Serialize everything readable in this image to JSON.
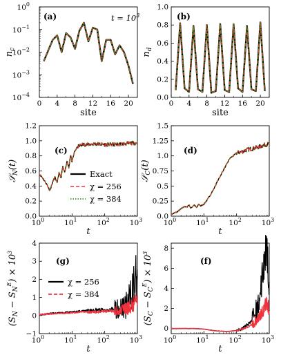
{
  "colors": {
    "exact": "#000000",
    "chi256": "#f0333f",
    "chi384": "#3c9a12",
    "chi256_err": "#000000",
    "chi384_err": "#f0333f"
  },
  "chart_data": [
    {
      "id": "a",
      "type": "line",
      "panel_label": "(a)",
      "annotation": "t = 10^3",
      "annotation_parts": {
        "base": "t = 10",
        "exp": "3"
      },
      "xlabel": "site",
      "ylabel": "n_c",
      "yscale": "log",
      "xlim": [
        0,
        22
      ],
      "ylim": [
        0.0001,
        1
      ],
      "xticks": [
        0,
        4,
        8,
        12,
        16,
        20
      ],
      "yticks": [
        "10^0",
        "10^-1",
        "10^-2",
        "10^-3",
        "10^-4"
      ],
      "x": [
        1,
        2,
        3,
        4,
        5,
        6,
        7,
        8,
        9,
        10,
        11,
        12,
        13,
        14,
        15,
        16,
        17,
        18,
        19,
        20,
        21
      ],
      "series": [
        {
          "name": "Exact",
          "values": [
            0.004,
            0.012,
            0.035,
            0.055,
            0.01,
            0.07,
            0.045,
            0.014,
            0.09,
            0.2,
            0.03,
            0.12,
            0.1,
            0.004,
            0.035,
            0.035,
            0.008,
            0.02,
            0.01,
            0.0025,
            0.0004
          ]
        },
        {
          "name": "χ = 256",
          "values": [
            0.004,
            0.012,
            0.035,
            0.055,
            0.01,
            0.07,
            0.045,
            0.014,
            0.09,
            0.2,
            0.03,
            0.12,
            0.1,
            0.004,
            0.035,
            0.035,
            0.008,
            0.02,
            0.01,
            0.0025,
            0.0004
          ]
        },
        {
          "name": "χ = 384",
          "values": [
            0.004,
            0.012,
            0.035,
            0.055,
            0.01,
            0.07,
            0.045,
            0.014,
            0.09,
            0.2,
            0.03,
            0.12,
            0.1,
            0.004,
            0.035,
            0.035,
            0.008,
            0.02,
            0.01,
            0.0025,
            0.0004
          ]
        }
      ]
    },
    {
      "id": "b",
      "type": "line",
      "panel_label": "(b)",
      "xlabel": "site",
      "ylabel": "n_d",
      "xlim": [
        0,
        22
      ],
      "ylim": [
        0,
        1.0
      ],
      "xticks": [
        0,
        4,
        8,
        12,
        16,
        20
      ],
      "yticks": [
        0.0,
        0.2,
        0.4,
        0.6,
        0.8,
        1.0
      ],
      "x": [
        1,
        2,
        3,
        4,
        5,
        6,
        7,
        8,
        9,
        10,
        11,
        12,
        13,
        14,
        15,
        16,
        17,
        18,
        19,
        20,
        21
      ],
      "series": [
        {
          "name": "Exact",
          "values": [
            0.08,
            0.82,
            0.1,
            0.06,
            0.79,
            0.09,
            0.06,
            0.8,
            0.05,
            0.07,
            0.81,
            0.08,
            0.06,
            0.81,
            0.1,
            0.06,
            0.79,
            0.09,
            0.07,
            0.83,
            0.07
          ]
        },
        {
          "name": "χ = 256",
          "values": [
            0.08,
            0.82,
            0.1,
            0.06,
            0.79,
            0.09,
            0.06,
            0.8,
            0.05,
            0.07,
            0.81,
            0.08,
            0.06,
            0.81,
            0.1,
            0.06,
            0.79,
            0.09,
            0.07,
            0.83,
            0.07
          ]
        },
        {
          "name": "χ = 384",
          "values": [
            0.08,
            0.82,
            0.1,
            0.06,
            0.79,
            0.09,
            0.06,
            0.8,
            0.05,
            0.07,
            0.81,
            0.08,
            0.06,
            0.81,
            0.1,
            0.06,
            0.79,
            0.09,
            0.07,
            0.83,
            0.07
          ]
        }
      ]
    },
    {
      "id": "c",
      "type": "line",
      "panel_label": "(c)",
      "xlabel": "t",
      "ylabel": "S_N(t)",
      "xscale": "log",
      "xlim": [
        1,
        1000
      ],
      "ylim": [
        0,
        1.2
      ],
      "yticks": [
        0.0,
        0.2,
        0.4,
        0.6,
        0.8,
        1.0,
        1.2
      ],
      "legend": {
        "placement": "center",
        "entries": [
          "Exact",
          "χ = 256",
          "χ = 384"
        ]
      },
      "x": [
        1,
        1.3,
        1.7,
        2.1,
        2.6,
        3,
        3.5,
        4,
        4.6,
        5.2,
        6,
        7,
        8,
        9,
        10,
        12,
        15,
        20,
        30,
        50,
        100,
        200,
        400,
        700,
        1000
      ],
      "series": [
        {
          "name": "Exact",
          "values": [
            0.56,
            0.5,
            0.42,
            0.34,
            0.46,
            0.52,
            0.44,
            0.58,
            0.5,
            0.66,
            0.57,
            0.74,
            0.64,
            0.82,
            0.72,
            0.86,
            0.92,
            0.95,
            0.95,
            0.96,
            0.95,
            0.95,
            0.96,
            0.97,
            0.97
          ]
        },
        {
          "name": "χ = 256",
          "values": [
            0.56,
            0.5,
            0.42,
            0.34,
            0.46,
            0.52,
            0.44,
            0.58,
            0.5,
            0.66,
            0.57,
            0.74,
            0.64,
            0.82,
            0.72,
            0.86,
            0.92,
            0.95,
            0.95,
            0.96,
            0.95,
            0.95,
            0.96,
            0.97,
            0.97
          ]
        },
        {
          "name": "χ = 384",
          "values": [
            0.56,
            0.5,
            0.42,
            0.34,
            0.46,
            0.52,
            0.44,
            0.58,
            0.5,
            0.66,
            0.57,
            0.74,
            0.64,
            0.82,
            0.72,
            0.86,
            0.92,
            0.95,
            0.95,
            0.96,
            0.95,
            0.95,
            0.96,
            0.97,
            0.97
          ]
        }
      ]
    },
    {
      "id": "d",
      "type": "line",
      "panel_label": "(d)",
      "xlabel": "t",
      "ylabel": "S_C(t)",
      "xscale": "log",
      "xlim": [
        1,
        1000
      ],
      "ylim": [
        0,
        1.5
      ],
      "yticks": [
        0.0,
        0.25,
        0.5,
        0.75,
        1.0,
        1.25,
        1.5
      ],
      "x": [
        1,
        1.5,
        2,
        2.5,
        3,
        3.5,
        4,
        5,
        6,
        7,
        8,
        10,
        13,
        16,
        20,
        25,
        30,
        40,
        50,
        60,
        70,
        80,
        100,
        150,
        200,
        300,
        500,
        700,
        1000
      ],
      "series": [
        {
          "name": "Exact",
          "values": [
            0.03,
            0.07,
            0.12,
            0.16,
            0.15,
            0.19,
            0.13,
            0.19,
            0.14,
            0.2,
            0.17,
            0.2,
            0.28,
            0.36,
            0.45,
            0.56,
            0.64,
            0.77,
            0.86,
            0.95,
            0.98,
            1.0,
            1.05,
            1.07,
            1.1,
            1.12,
            1.15,
            1.18,
            1.2
          ]
        },
        {
          "name": "χ = 256",
          "values": [
            0.03,
            0.07,
            0.12,
            0.16,
            0.15,
            0.19,
            0.13,
            0.19,
            0.14,
            0.2,
            0.17,
            0.2,
            0.28,
            0.36,
            0.45,
            0.56,
            0.64,
            0.77,
            0.86,
            0.95,
            0.98,
            1.0,
            1.05,
            1.07,
            1.1,
            1.12,
            1.15,
            1.18,
            1.2
          ]
        },
        {
          "name": "χ = 384",
          "values": [
            0.03,
            0.07,
            0.12,
            0.16,
            0.15,
            0.19,
            0.13,
            0.19,
            0.14,
            0.2,
            0.17,
            0.2,
            0.28,
            0.36,
            0.45,
            0.56,
            0.64,
            0.77,
            0.86,
            0.95,
            0.98,
            1.0,
            1.05,
            1.07,
            1.1,
            1.12,
            1.15,
            1.18,
            1.2
          ]
        }
      ]
    },
    {
      "id": "g",
      "type": "line",
      "panel_label": "(g)",
      "xlabel": "t",
      "ylabel": "(S_N − S_N^E) × 10^3",
      "xscale": "log",
      "xlim": [
        1,
        1000
      ],
      "ylim": [
        -1,
        4
      ],
      "yticks": [
        -1,
        0,
        1,
        2,
        3,
        4
      ],
      "legend": {
        "placement": "center-left",
        "entries": [
          "χ = 256",
          "χ = 384"
        ]
      },
      "x": [
        1,
        2,
        5,
        10,
        20,
        50,
        100,
        200,
        300,
        500,
        700,
        1000
      ],
      "series": [
        {
          "name": "χ = 256",
          "values": [
            0.05,
            0.1,
            0.15,
            0.2,
            0.25,
            0.3,
            0.3,
            0.35,
            0.4,
            0.6,
            1.4,
            2.3
          ]
        },
        {
          "name": "χ = 384",
          "values": [
            0.05,
            0.1,
            0.12,
            0.15,
            0.2,
            0.2,
            0.25,
            0.25,
            0.3,
            0.4,
            0.5,
            0.8
          ]
        }
      ]
    },
    {
      "id": "f",
      "type": "line",
      "panel_label": "(f)",
      "xlabel": "t",
      "ylabel": "(S_C − S_C^E) × 10^3",
      "xscale": "log",
      "xlim": [
        1,
        1000
      ],
      "ylim": [
        -0.5,
        8.5
      ],
      "yticks": [
        0,
        2,
        4,
        6,
        8
      ],
      "x": [
        1,
        2,
        5,
        10,
        20,
        50,
        100,
        150,
        200,
        300,
        400,
        500,
        600,
        700,
        800,
        900,
        1000
      ],
      "series": [
        {
          "name": "χ = 256",
          "values": [
            0.0,
            0.0,
            0.0,
            -0.05,
            -0.2,
            -0.3,
            -0.2,
            0.0,
            0.3,
            0.8,
            1.6,
            2.8,
            4.8,
            6.8,
            8.2,
            6.0,
            3.5
          ]
        },
        {
          "name": "χ = 384",
          "values": [
            0.0,
            0.0,
            0.0,
            -0.05,
            -0.2,
            -0.3,
            -0.2,
            -0.05,
            0.1,
            0.4,
            0.8,
            1.2,
            1.7,
            2.0,
            2.5,
            2.3,
            2.0
          ]
        }
      ]
    }
  ]
}
